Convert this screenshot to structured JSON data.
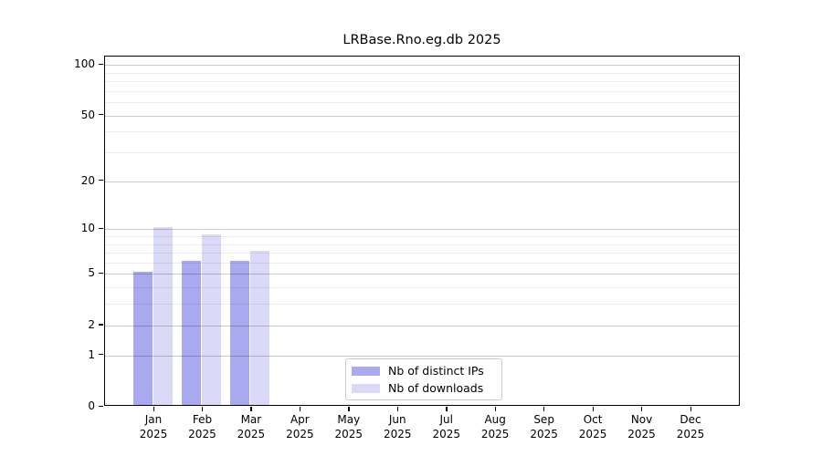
{
  "title": "LRBase.Rno.eg.db 2025",
  "chart_data": {
    "type": "bar",
    "title": "LRBase.Rno.eg.db 2025",
    "categories": [
      "Jan",
      "Feb",
      "Mar",
      "Apr",
      "May",
      "Jun",
      "Jul",
      "Aug",
      "Sep",
      "Oct",
      "Nov",
      "Dec"
    ],
    "category_year": "2025",
    "series": [
      {
        "name": "Nb of distinct IPs",
        "color": "#a9a9f0",
        "values": [
          5,
          6,
          6,
          0,
          0,
          0,
          0,
          0,
          0,
          0,
          0,
          0
        ]
      },
      {
        "name": "Nb of downloads",
        "color": "#dad9f8",
        "values": [
          10,
          9,
          7,
          0,
          0,
          0,
          0,
          0,
          0,
          0,
          0,
          0
        ]
      }
    ],
    "y_scale": "log1p",
    "y_major_ticks": [
      0,
      1,
      2,
      5,
      10,
      20,
      50,
      100
    ],
    "y_minor_gridlines": [
      3,
      4,
      6,
      7,
      8,
      9,
      30,
      40,
      60,
      70,
      80,
      90
    ],
    "y_axis_top_value": 112,
    "ylim": [
      0,
      112
    ],
    "xlabel": "",
    "ylabel": "",
    "grid": true,
    "legend_position": "lower center"
  },
  "colors": {
    "bar_distinct_ips": "#a9a9f0",
    "bar_downloads": "#dad9f8",
    "major_gridline": "#c9c9c9",
    "minor_gridline": "#ececec",
    "axis_spine": "#000000",
    "legend_border": "#cccccc"
  }
}
